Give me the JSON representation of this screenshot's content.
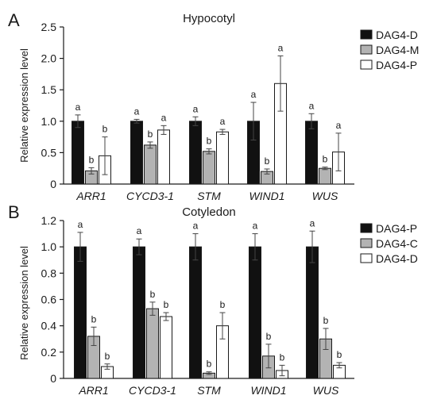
{
  "chart_data": [
    {
      "panel": "A",
      "type": "bar",
      "title": "Hypocotyl",
      "xlabel": "",
      "ylabel": "Relative expression level",
      "ylim": [
        0,
        2.5
      ],
      "yticks": [
        "0",
        "0.5",
        "1.0",
        "1.5",
        "2.0",
        "2.5"
      ],
      "categories": [
        "ARR1",
        "CYCD3-1",
        "STM",
        "WIND1",
        "WUS"
      ],
      "legend_position": "right",
      "series": [
        {
          "name": "DAG4-D",
          "color": "#111111",
          "values": [
            1.0,
            1.0,
            1.0,
            1.0,
            1.0
          ],
          "errors": [
            0.1,
            0.03,
            0.07,
            0.3,
            0.12
          ],
          "letters": [
            "a",
            "a",
            "a",
            "a",
            "a"
          ]
        },
        {
          "name": "DAG4-M",
          "color": "#b3b3b3",
          "values": [
            0.21,
            0.62,
            0.52,
            0.2,
            0.25
          ],
          "errors": [
            0.05,
            0.05,
            0.04,
            0.04,
            0.02
          ],
          "letters": [
            "b",
            "b",
            "b",
            "b",
            "b"
          ]
        },
        {
          "name": "DAG4-P",
          "color": "#ffffff",
          "values": [
            0.45,
            0.86,
            0.83,
            1.6,
            0.51
          ],
          "errors": [
            0.3,
            0.07,
            0.04,
            0.44,
            0.3
          ],
          "letters": [
            "b",
            "a",
            "a",
            "a",
            "a"
          ]
        }
      ]
    },
    {
      "panel": "B",
      "type": "bar",
      "title": "Cotyledon",
      "xlabel": "",
      "ylabel": "Relative expression level",
      "ylim": [
        0,
        1.2
      ],
      "yticks": [
        "0",
        "0.2",
        "0.4",
        "0.6",
        "0.8",
        "1.0",
        "1.2"
      ],
      "categories": [
        "ARR1",
        "CYCD3-1",
        "STM",
        "WIND1",
        "WUS"
      ],
      "legend_position": "right",
      "series": [
        {
          "name": "DAG4-P",
          "color": "#111111",
          "values": [
            1.0,
            1.0,
            1.0,
            1.0,
            1.0
          ],
          "errors": [
            0.11,
            0.06,
            0.1,
            0.1,
            0.12
          ],
          "letters": [
            "a",
            "a",
            "a",
            "a",
            "a"
          ]
        },
        {
          "name": "DAG4-C",
          "color": "#b3b3b3",
          "values": [
            0.32,
            0.53,
            0.04,
            0.17,
            0.3
          ],
          "errors": [
            0.07,
            0.05,
            0.01,
            0.09,
            0.08
          ],
          "letters": [
            "b",
            "b",
            "b",
            "b",
            "b"
          ]
        },
        {
          "name": "DAG4-D",
          "color": "#ffffff",
          "values": [
            0.09,
            0.47,
            0.4,
            0.06,
            0.1
          ],
          "errors": [
            0.02,
            0.03,
            0.1,
            0.04,
            0.02
          ],
          "letters": [
            "b",
            "b",
            "b",
            "b",
            "b"
          ]
        }
      ]
    }
  ]
}
